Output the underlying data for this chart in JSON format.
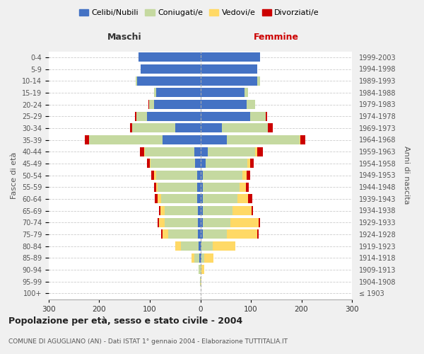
{
  "age_groups": [
    "100+",
    "95-99",
    "90-94",
    "85-89",
    "80-84",
    "75-79",
    "70-74",
    "65-69",
    "60-64",
    "55-59",
    "50-54",
    "45-49",
    "40-44",
    "35-39",
    "30-34",
    "25-29",
    "20-24",
    "15-19",
    "10-14",
    "5-9",
    "0-4"
  ],
  "birth_years": [
    "≤ 1903",
    "1904-1908",
    "1909-1913",
    "1914-1918",
    "1919-1923",
    "1924-1928",
    "1929-1933",
    "1934-1938",
    "1939-1943",
    "1944-1948",
    "1949-1953",
    "1954-1958",
    "1959-1963",
    "1964-1968",
    "1969-1973",
    "1974-1978",
    "1979-1983",
    "1984-1988",
    "1989-1993",
    "1994-1998",
    "1999-2003"
  ],
  "male_celibi": [
    0,
    0,
    0,
    2,
    3,
    5,
    5,
    5,
    6,
    6,
    6,
    10,
    12,
    75,
    50,
    105,
    92,
    88,
    125,
    118,
    122
  ],
  "male_coniugati": [
    0,
    1,
    3,
    10,
    35,
    58,
    65,
    65,
    72,
    78,
    82,
    88,
    98,
    145,
    85,
    22,
    10,
    4,
    3,
    0,
    0
  ],
  "male_vedovi": [
    0,
    0,
    1,
    6,
    12,
    12,
    12,
    9,
    6,
    4,
    3,
    2,
    1,
    0,
    0,
    0,
    0,
    0,
    0,
    0,
    0
  ],
  "male_divorziati": [
    0,
    0,
    0,
    0,
    0,
    2,
    3,
    3,
    6,
    4,
    6,
    6,
    9,
    8,
    4,
    2,
    1,
    0,
    0,
    0,
    0
  ],
  "female_celibi": [
    0,
    0,
    0,
    2,
    2,
    5,
    5,
    5,
    5,
    5,
    5,
    10,
    15,
    52,
    42,
    98,
    92,
    88,
    112,
    112,
    118
  ],
  "female_coniugati": [
    0,
    0,
    2,
    6,
    22,
    48,
    55,
    58,
    68,
    73,
    78,
    83,
    93,
    145,
    92,
    32,
    16,
    6,
    6,
    0,
    0
  ],
  "female_vedovi": [
    1,
    2,
    6,
    18,
    45,
    60,
    55,
    38,
    22,
    12,
    9,
    6,
    4,
    1,
    0,
    0,
    0,
    0,
    0,
    0,
    0
  ],
  "female_divorziati": [
    0,
    0,
    0,
    0,
    0,
    2,
    3,
    3,
    8,
    6,
    6,
    6,
    12,
    10,
    9,
    2,
    1,
    0,
    0,
    0,
    0
  ],
  "colors": {
    "celibi": "#4472c4",
    "coniugati": "#c5d9a0",
    "vedovi": "#ffd966",
    "divorziati": "#cc0000"
  },
  "title": "Popolazione per età, sesso e stato civile - 2004",
  "subtitle": "COMUNE DI AGUGLIANO (AN) - Dati ISTAT 1° gennaio 2004 - Elaborazione TUTTITALIA.IT",
  "label_maschi": "Maschi",
  "label_femmine": "Femmine",
  "ylabel_left": "Fasce di età",
  "ylabel_right": "Anni di nascita",
  "xlim": 300,
  "background": "#f0f0f0",
  "plot_bg": "#ffffff"
}
